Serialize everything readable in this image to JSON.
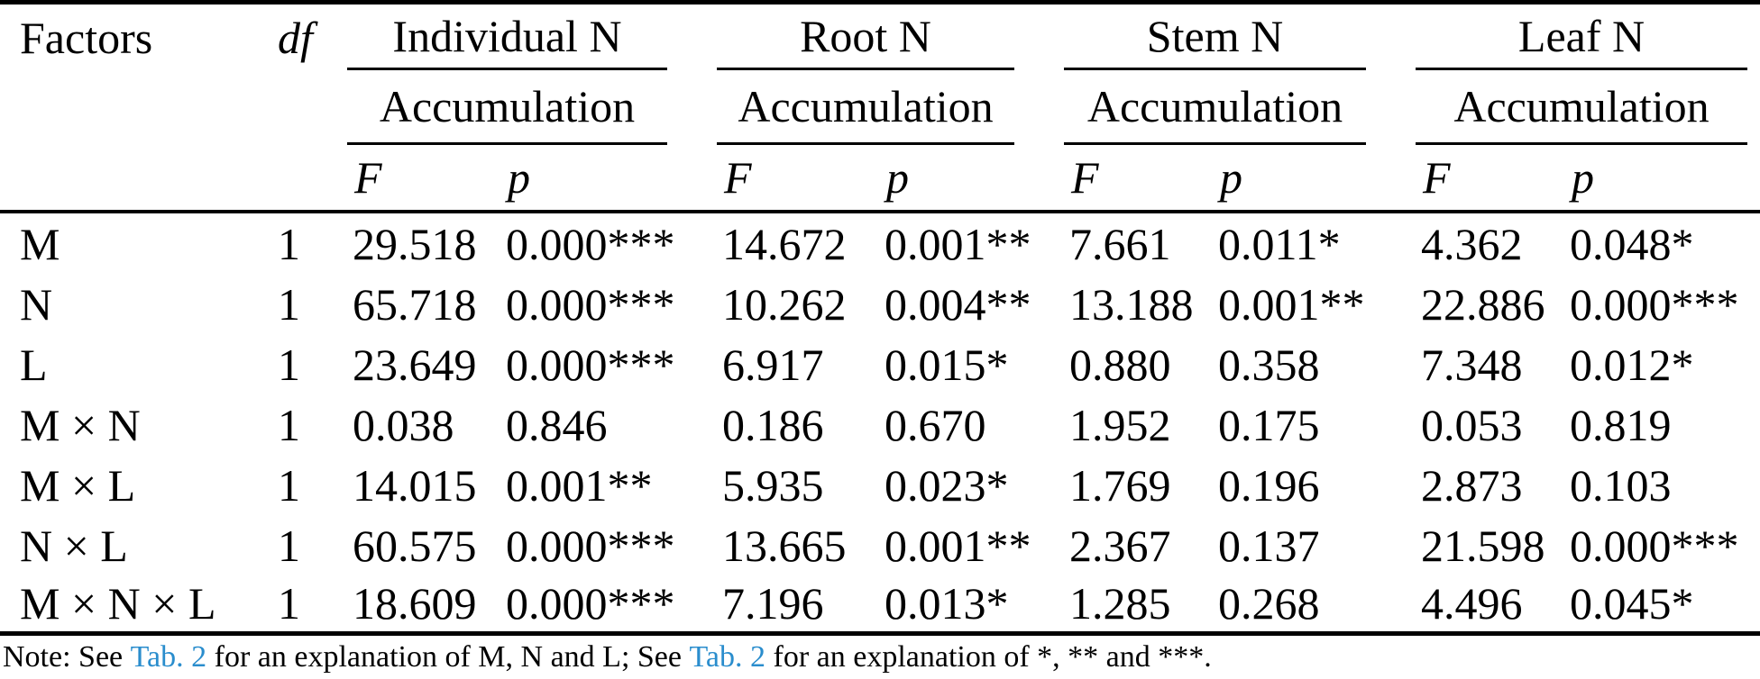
{
  "table": {
    "header": {
      "factors_label": "Factors",
      "df_label": "df",
      "f_label": "F",
      "p_label": "p"
    },
    "groups": [
      {
        "line1": "Individual N",
        "line2": "Accumulation"
      },
      {
        "line1": "Root N",
        "line2": "Accumulation"
      },
      {
        "line1": "Stem N",
        "line2": "Accumulation"
      },
      {
        "line1": "Leaf N",
        "line2": "Accumulation"
      }
    ],
    "rows": [
      {
        "factor": "M",
        "df": "1",
        "values": [
          "29.518",
          "0.000***",
          "14.672",
          "0.001**",
          "7.661",
          "0.011*",
          "4.362",
          "0.048*"
        ]
      },
      {
        "factor": "N",
        "df": "1",
        "values": [
          "65.718",
          "0.000***",
          "10.262",
          "0.004**",
          "13.188",
          "0.001**",
          "22.886",
          "0.000***"
        ]
      },
      {
        "factor": "L",
        "df": "1",
        "values": [
          "23.649",
          "0.000***",
          "6.917",
          "0.015*",
          "0.880",
          "0.358",
          "7.348",
          "0.012*"
        ]
      },
      {
        "factor": "M × N",
        "df": "1",
        "values": [
          "0.038",
          "0.846",
          "0.186",
          "0.670",
          "1.952",
          "0.175",
          "0.053",
          "0.819"
        ]
      },
      {
        "factor": "M × L",
        "df": "1",
        "values": [
          "14.015",
          "0.001**",
          "5.935",
          "0.023*",
          "1.769",
          "0.196",
          "2.873",
          "0.103"
        ]
      },
      {
        "factor": "N × L",
        "df": "1",
        "values": [
          "60.575",
          "0.000***",
          "13.665",
          "0.001**",
          "2.367",
          "0.137",
          "21.598",
          "0.000***"
        ]
      },
      {
        "factor": "M × N × L",
        "df": "1",
        "values": [
          "18.609",
          "0.000***",
          "7.196",
          "0.013*",
          "1.285",
          "0.268",
          "4.496",
          "0.045*"
        ]
      }
    ]
  },
  "note": {
    "prefix": "Note: See ",
    "link1": "Tab. 2",
    "middle": " for an explanation of M, N and L; See ",
    "link2": "Tab. 2",
    "suffix": " for an explanation of *, ** and ***.",
    "link_color": "#2A8DCD"
  }
}
